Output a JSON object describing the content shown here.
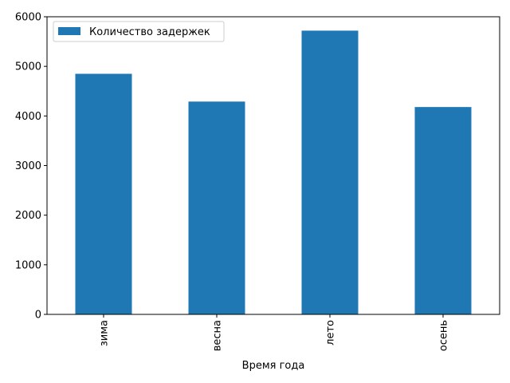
{
  "chart_data": {
    "type": "bar",
    "categories": [
      "зима",
      "весна",
      "лето",
      "осень"
    ],
    "series": [
      {
        "name": "Количество задержек",
        "values": [
          4850,
          4290,
          5720,
          4180
        ],
        "color": "#1f77b4"
      }
    ],
    "xlabel": "Время года",
    "ylabel": "",
    "ylim": [
      0,
      6000
    ],
    "yticks": [
      0,
      1000,
      2000,
      3000,
      4000,
      5000,
      6000
    ],
    "grid": false,
    "legend_position": "top-left"
  }
}
